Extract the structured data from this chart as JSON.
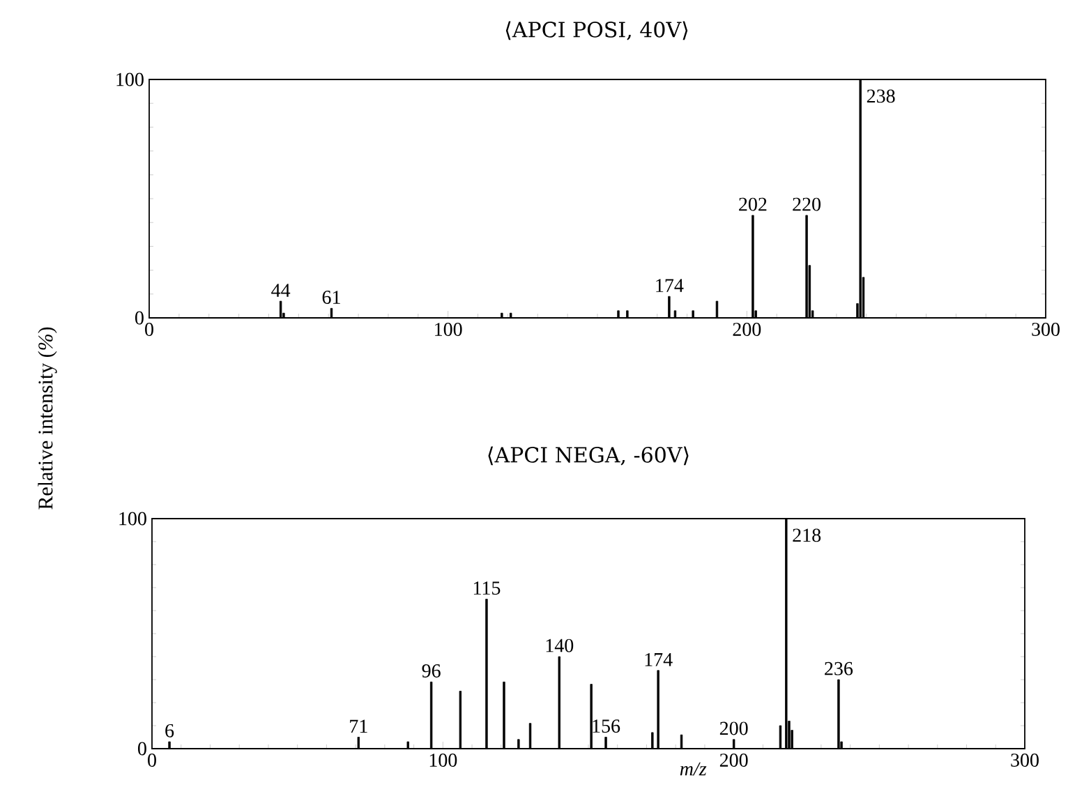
{
  "chart_data": [
    {
      "type": "bar",
      "title": "⟨APCI POSI, 40V⟩",
      "ylabel": "Relative intensity (*%*)",
      "x": [
        44,
        45,
        61,
        118,
        121,
        157,
        160,
        174,
        176,
        182,
        190,
        202,
        203,
        220,
        221,
        222,
        237,
        238,
        239
      ],
      "values": [
        7,
        2,
        4,
        2,
        2,
        3,
        3,
        9,
        3,
        3,
        7,
        43,
        3,
        43,
        22,
        3,
        6,
        100,
        17
      ],
      "color": "#000000",
      "xlim": [
        0,
        300
      ],
      "ylim": [
        0,
        100
      ],
      "xticks": [
        0,
        100,
        200,
        300
      ],
      "yticks": [
        0,
        100
      ],
      "annotations": [
        {
          "text": "44",
          "x": 44,
          "y": 7
        },
        {
          "text": "61",
          "x": 61,
          "y": 4
        },
        {
          "text": "174",
          "x": 174,
          "y": 9
        },
        {
          "text": "202",
          "x": 202,
          "y": 43
        },
        {
          "text": "220",
          "x": 220,
          "y": 43
        },
        {
          "text": "238",
          "x": 238,
          "y": 100
        }
      ]
    },
    {
      "type": "bar",
      "title": "⟨APCI NEGA, -60V⟩",
      "xlabel": "m/z",
      "x": [
        6,
        71,
        88,
        96,
        106,
        115,
        121,
        126,
        130,
        140,
        151,
        156,
        172,
        174,
        182,
        200,
        216,
        218,
        219,
        220,
        236,
        237
      ],
      "values": [
        3,
        5,
        3,
        29,
        25,
        65,
        29,
        4,
        11,
        40,
        28,
        5,
        7,
        34,
        6,
        4,
        10,
        100,
        12,
        8,
        30,
        3
      ],
      "color": "#000000",
      "xlim": [
        0,
        300
      ],
      "ylim": [
        0,
        100
      ],
      "xticks": [
        0,
        100,
        200,
        300
      ],
      "yticks": [
        0,
        100
      ],
      "annotations": [
        {
          "text": "6",
          "x": 6,
          "y": 3
        },
        {
          "text": "71",
          "x": 71,
          "y": 5
        },
        {
          "text": "96",
          "x": 96,
          "y": 29
        },
        {
          "text": "115",
          "x": 115,
          "y": 65
        },
        {
          "text": "140",
          "x": 140,
          "y": 40
        },
        {
          "text": "156",
          "x": 156,
          "y": 5
        },
        {
          "text": "174",
          "x": 174,
          "y": 34
        },
        {
          "text": "200",
          "x": 200,
          "y": 4
        },
        {
          "text": "218",
          "x": 218,
          "y": 100
        },
        {
          "text": "236",
          "x": 236,
          "y": 30
        }
      ]
    }
  ]
}
